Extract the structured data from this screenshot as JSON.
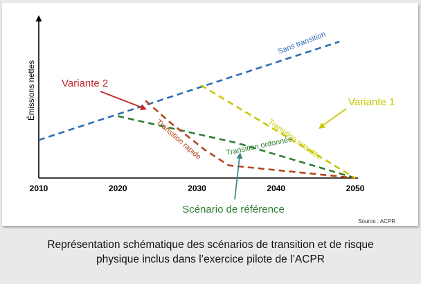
{
  "chart_data": {
    "type": "line",
    "ylabel": "Émissions nettes",
    "xlim": [
      2010,
      2050
    ],
    "ylim": [
      0,
      100
    ],
    "x_ticks": [
      "2010",
      "2020",
      "2030",
      "2040",
      "2050"
    ],
    "grid": false,
    "series": [
      {
        "name": "Sans transition",
        "color": "#2e6db4",
        "points": [
          [
            2010,
            27
          ],
          [
            2029,
            62
          ],
          [
            2048,
            97
          ]
        ]
      },
      {
        "name": "Transition ordonnée",
        "color": "#2e7d32",
        "points": [
          [
            2020,
            44
          ],
          [
            2035,
            25
          ],
          [
            2050,
            0
          ]
        ]
      },
      {
        "name": "Transition rapide",
        "color": "#b5451b",
        "points": [
          [
            2023.5,
            55
          ],
          [
            2026.5,
            40
          ],
          [
            2031,
            20
          ],
          [
            2034,
            9
          ],
          [
            2050,
            0
          ]
        ]
      },
      {
        "name": "Transition retardée",
        "color": "#c8c800",
        "points": [
          [
            2030.5,
            66
          ],
          [
            2050,
            0
          ]
        ]
      }
    ],
    "callouts": [
      {
        "text": "Variante 2",
        "color": "#c0282d"
      },
      {
        "text": "Variante 1",
        "color": "#c8c800"
      },
      {
        "text": "Scénario de référence",
        "color": "#2e7d32"
      }
    ],
    "source": "Source : ACPR"
  },
  "caption": {
    "line1": "Représentation schématique des scénarios de transition et de risque",
    "line2": "physique inclus dans l’exercice pilote de l’ACPR"
  }
}
